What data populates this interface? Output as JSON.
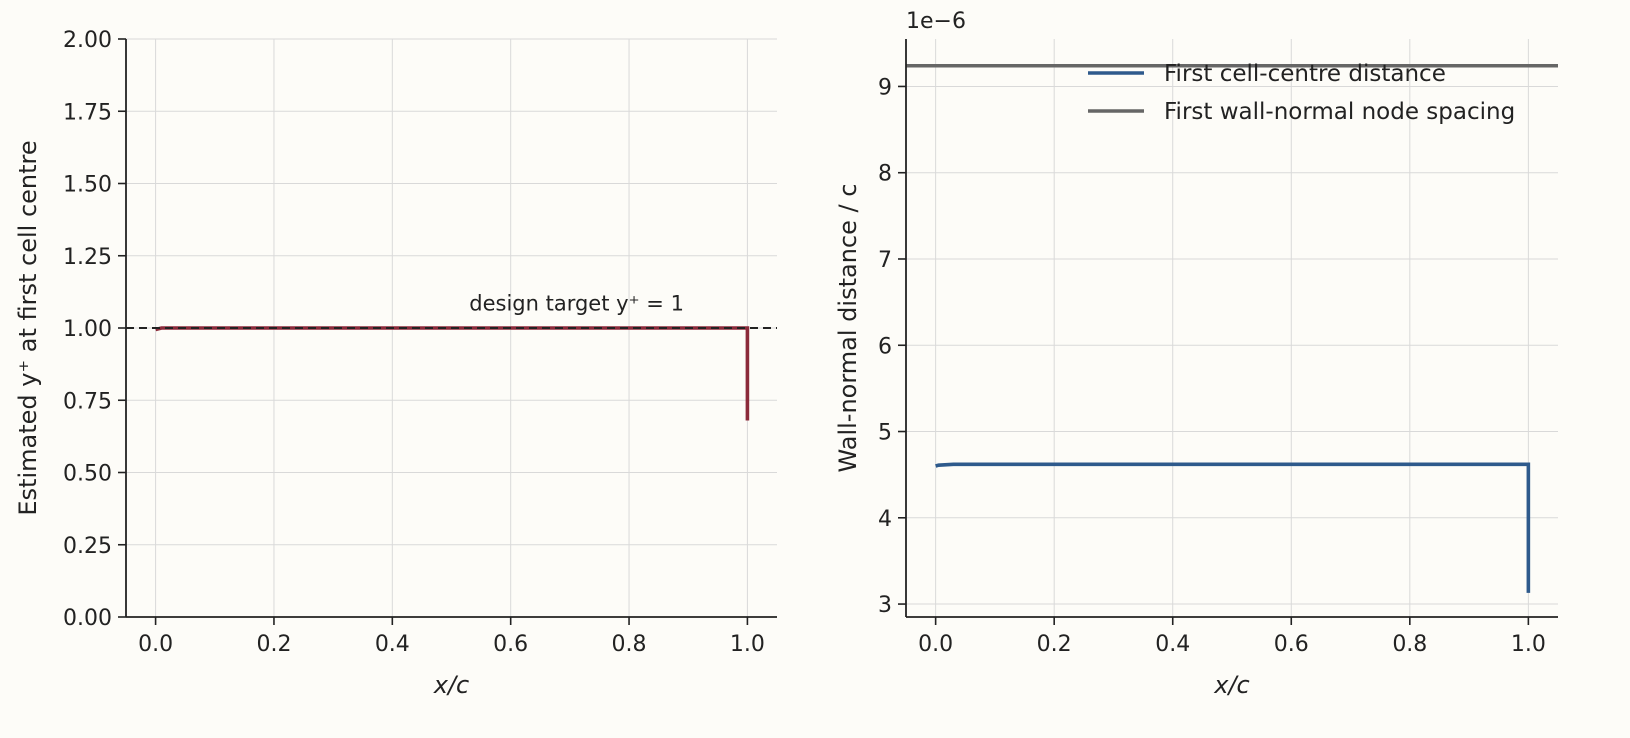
{
  "chart_data": [
    {
      "type": "line",
      "xlabel": "x/c",
      "ylabel": "Estimated y⁺ at first cell centre",
      "xlim": [
        -0.05,
        1.05
      ],
      "ylim": [
        0.0,
        2.0
      ],
      "xticks": [
        "0.0",
        "0.2",
        "0.4",
        "0.6",
        "0.8",
        "1.0"
      ],
      "yticks": [
        "0.00",
        "0.25",
        "0.50",
        "0.75",
        "1.00",
        "1.25",
        "1.50",
        "1.75",
        "2.00"
      ],
      "grid": true,
      "series": [
        {
          "color": "#8b2a3a",
          "x": [
            0.0,
            0.01,
            0.05,
            0.2,
            0.4,
            0.6,
            0.8,
            0.99,
            1.0,
            1.0
          ],
          "y": [
            0.995,
            1.0,
            1.0,
            1.0,
            1.0,
            1.0,
            1.0,
            1.0,
            1.0,
            0.68
          ]
        }
      ],
      "reference_line": {
        "y": 1.0,
        "style": "dashed",
        "color": "#222222"
      },
      "annotation": {
        "text": "design target  y⁺ = 1",
        "x": 0.53,
        "y": 1.06
      }
    },
    {
      "type": "line",
      "xlabel": "x/c",
      "ylabel": "Wall-normal distance  / c",
      "offset_text": "1e−6",
      "xlim": [
        -0.05,
        1.05
      ],
      "ylim": [
        2.85,
        9.55
      ],
      "xticks": [
        "0.0",
        "0.2",
        "0.4",
        "0.6",
        "0.8",
        "1.0"
      ],
      "yticks": [
        "3",
        "4",
        "5",
        "6",
        "7",
        "8",
        "9"
      ],
      "grid": true,
      "legend_position": "top-right",
      "series": [
        {
          "name": "First cell-centre distance",
          "color": "#2e5a8c",
          "x": [
            0.0,
            0.005,
            0.03,
            0.2,
            0.4,
            0.6,
            0.8,
            0.999,
            1.0,
            1.0
          ],
          "y": [
            4.6,
            4.61,
            4.62,
            4.62,
            4.62,
            4.62,
            4.62,
            4.62,
            4.62,
            3.13
          ]
        },
        {
          "name": "First wall-normal node spacing",
          "color": "#666666",
          "x": [
            -0.05,
            1.05
          ],
          "y": [
            9.24,
            9.24
          ]
        }
      ]
    }
  ]
}
